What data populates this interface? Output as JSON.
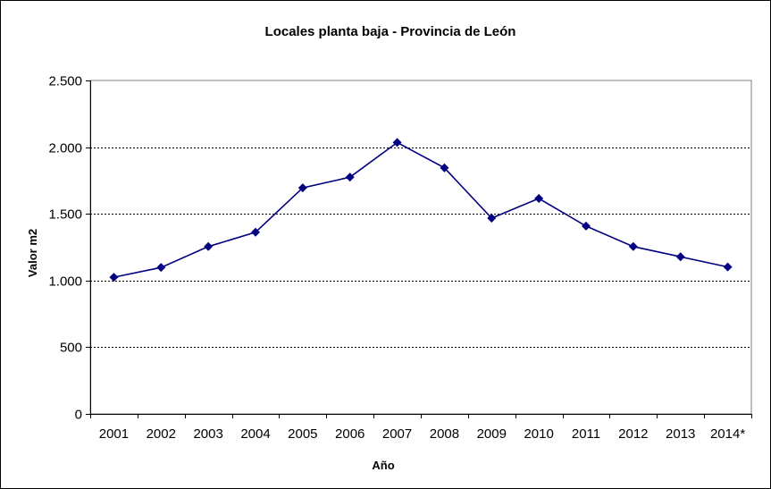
{
  "chart_data": {
    "type": "line",
    "title": "Locales planta baja - Provincia de León",
    "xlabel": "Año",
    "ylabel": "Valor m2",
    "categories": [
      "2001",
      "2002",
      "2003",
      "2004",
      "2005",
      "2006",
      "2007",
      "2008",
      "2009",
      "2010",
      "2011",
      "2012",
      "2013",
      "2014*"
    ],
    "series": [
      {
        "values": [
          1025,
          1098,
          1255,
          1362,
          1695,
          1775,
          2035,
          1845,
          1468,
          1615,
          1408,
          1255,
          1178,
          1102
        ],
        "color": "#000080"
      }
    ],
    "ylim": [
      0,
      2500
    ],
    "yticks": [
      0,
      500,
      1000,
      1500,
      2000,
      2500
    ],
    "ytick_labels": [
      "0",
      "500",
      "1.000",
      "1.500",
      "2.000",
      "2.500"
    ],
    "grid": "horizontal-dashed",
    "legend": "none",
    "marker": "diamond"
  }
}
